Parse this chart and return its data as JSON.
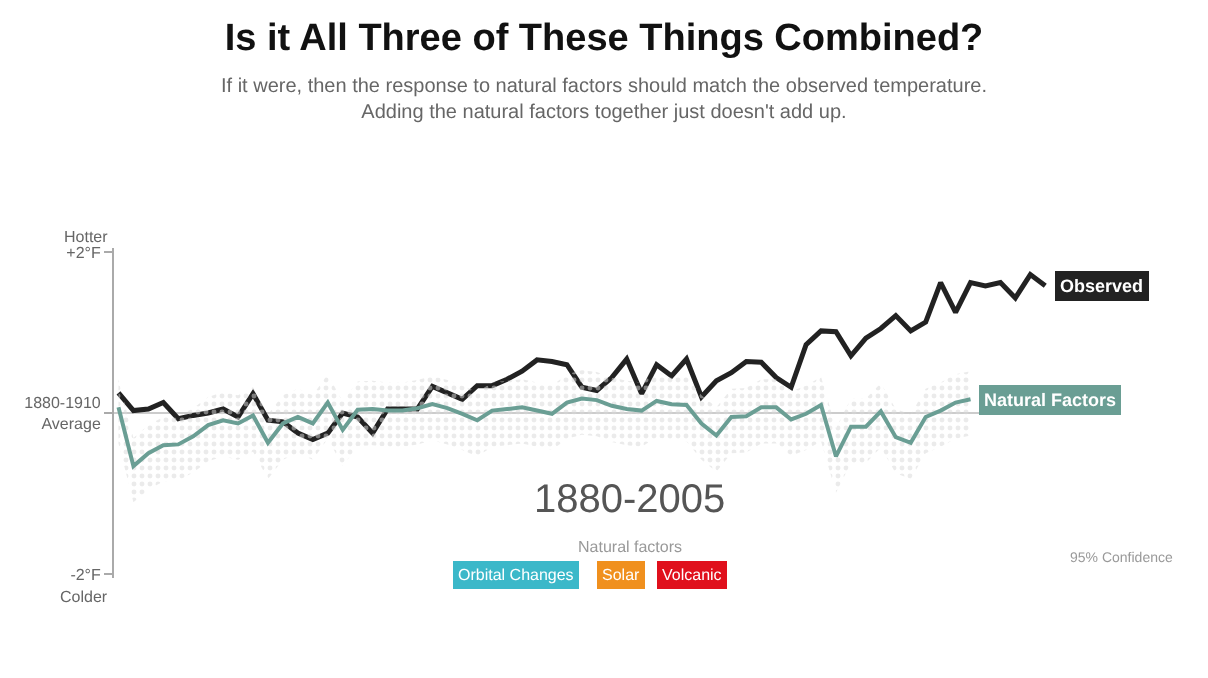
{
  "chart_data": {
    "type": "line",
    "title": "Is it All Three of These Things Combined?",
    "subtitle": "If it were, then the response to natural factors should match the observed temperature.\nAdding the natural factors together just doesn't add up.",
    "categories": [
      null,
      null,
      null,
      null,
      null,
      null,
      null,
      null,
      null,
      null,
      null,
      null,
      null,
      null,
      null,
      null,
      null,
      null,
      null,
      null,
      null,
      null,
      null,
      null,
      null,
      null,
      null,
      null,
      null,
      null,
      null,
      null,
      null,
      null,
      null,
      null,
      null,
      null,
      null,
      null,
      null,
      null,
      null,
      null,
      null,
      null,
      null,
      null,
      null,
      null,
      null,
      null,
      null,
      null,
      null,
      null,
      null,
      null,
      null,
      null,
      null,
      null,
      null
    ],
    "series": [
      {
        "name": "Observed",
        "color": "#222222",
        "values": [
          0.25,
          0.03,
          0.05,
          0.13,
          -0.07,
          -0.03,
          0,
          0.05,
          -0.05,
          0.24,
          -0.09,
          -0.11,
          -0.25,
          -0.33,
          -0.25,
          0,
          -0.05,
          -0.25,
          0.05,
          0.05,
          0.05,
          0.33,
          0.25,
          0.17,
          0.34,
          0.34,
          0.42,
          0.52,
          0.66,
          0.64,
          0.6,
          0.32,
          0.28,
          0.44,
          0.67,
          0.24,
          0.6,
          0.46,
          0.67,
          0.2,
          0.4,
          0.5,
          0.64,
          0.63,
          0.44,
          0.32,
          0.85,
          1.02,
          1.01,
          0.71,
          0.93,
          1.05,
          1.21,
          1.02,
          1.13,
          1.62,
          1.25,
          1.62,
          1.58,
          1.62,
          1.43,
          1.72,
          1.58
        ]
      },
      {
        "name": "Natural Factors",
        "color": "#6a9e94",
        "values": [
          0.07,
          -0.66,
          -0.5,
          -0.4,
          -0.39,
          -0.29,
          -0.15,
          -0.09,
          -0.13,
          -0.03,
          -0.37,
          -0.13,
          -0.05,
          -0.13,
          0.13,
          -0.21,
          0.04,
          0.05,
          0.03,
          0.03,
          0.06,
          0.11,
          0.06,
          -0.01,
          -0.09,
          0.03,
          0.05,
          0.07,
          0.03,
          -0.01,
          0.13,
          0.18,
          0.16,
          0.09,
          0.05,
          0.03,
          0.15,
          0.11,
          0.1,
          -0.13,
          -0.28,
          -0.05,
          -0.04,
          0.07,
          0.07,
          -0.08,
          -0.01,
          0.1,
          -0.54,
          -0.17,
          -0.17,
          0.02,
          -0.3,
          -0.37,
          -0.05,
          0.03,
          0.13,
          0.17,
          null,
          null,
          null,
          null,
          null
        ],
        "upper": [
          0.42,
          -0.31,
          -0.15,
          -0.05,
          -0.04,
          0.06,
          0.2,
          0.26,
          0.22,
          0.32,
          -0.02,
          0.22,
          0.3,
          0.22,
          0.48,
          0.14,
          0.39,
          0.4,
          0.38,
          0.38,
          0.41,
          0.46,
          0.41,
          0.34,
          0.26,
          0.38,
          0.4,
          0.42,
          0.38,
          0.34,
          0.48,
          0.53,
          0.51,
          0.44,
          0.4,
          0.38,
          0.5,
          0.46,
          0.45,
          0.22,
          0.07,
          0.3,
          0.31,
          0.42,
          0.42,
          0.27,
          0.34,
          0.45,
          -0.19,
          0.18,
          0.18,
          0.37,
          0.05,
          -0.02,
          0.3,
          0.38,
          0.48,
          0.52,
          null,
          null,
          null,
          null,
          null
        ],
        "lower": [
          -0.38,
          -1.11,
          -0.95,
          -0.85,
          -0.84,
          -0.74,
          -0.6,
          -0.54,
          -0.58,
          -0.48,
          -0.82,
          -0.58,
          -0.5,
          -0.58,
          -0.32,
          -0.66,
          -0.41,
          -0.4,
          -0.42,
          -0.42,
          -0.39,
          -0.34,
          -0.39,
          -0.46,
          -0.54,
          -0.42,
          -0.4,
          -0.38,
          -0.42,
          -0.46,
          -0.32,
          -0.27,
          -0.29,
          -0.36,
          -0.4,
          -0.42,
          -0.3,
          -0.34,
          -0.35,
          -0.58,
          -0.73,
          -0.5,
          -0.49,
          -0.38,
          -0.38,
          -0.53,
          -0.46,
          -0.35,
          -0.99,
          -0.62,
          -0.62,
          -0.43,
          -0.75,
          -0.82,
          -0.5,
          -0.42,
          -0.32,
          -0.28,
          null,
          null,
          null,
          null,
          null
        ]
      }
    ],
    "ylim": [
      -2.05,
      2.05
    ],
    "yticks": [
      {
        "value": 2,
        "label": "+2°F"
      },
      {
        "value": 0,
        "label": "1880-1910\nAverage"
      },
      {
        "value": -2,
        "label": "-2°F"
      }
    ],
    "tick_labels": "y",
    "grid": false,
    "legend": false,
    "marker": "none",
    "line_style": "solid",
    "ref_lines": [
      {
        "axis": "y",
        "value": 0,
        "color": "#cccccc"
      }
    ],
    "annotations": [
      "Hotter",
      "Colder",
      "1880-2005",
      "Natural factors",
      "Orbital Changes",
      "Solar",
      "Volcanic",
      "95% Confidence"
    ]
  }
}
